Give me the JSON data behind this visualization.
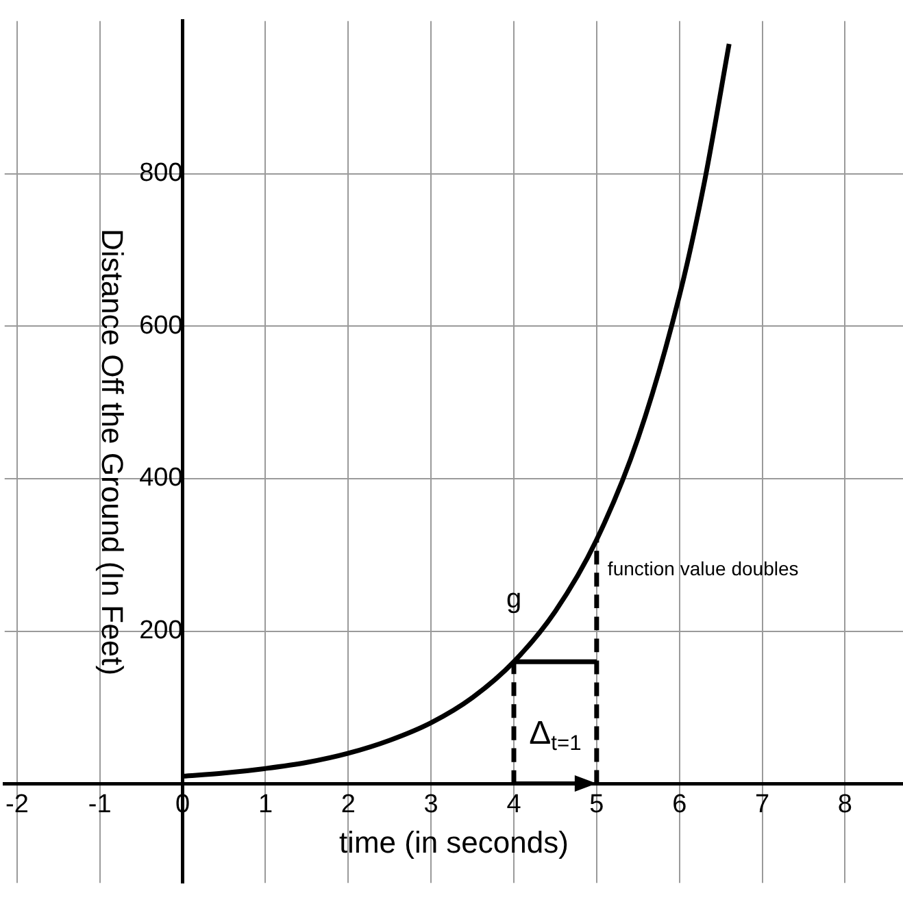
{
  "chart_data": {
    "type": "line",
    "xlabel": "time (in seconds)",
    "ylabel": "Distance Off the Ground (In Feet)",
    "xlim": [
      -2.15,
      8.7
    ],
    "ylim": [
      -130,
      1000
    ],
    "xticks": [
      -2,
      -1,
      0,
      1,
      2,
      3,
      4,
      5,
      6,
      7,
      8
    ],
    "yticks": [
      200,
      400,
      600,
      800
    ],
    "grid": true,
    "legend": false,
    "marker": "none",
    "series": [
      {
        "name": "g",
        "color": "#000000",
        "x": [
          0,
          0.5,
          1,
          1.5,
          2,
          2.5,
          3,
          3.5,
          4,
          4.5,
          5,
          5.5,
          6,
          6.3,
          6.6
        ],
        "values": [
          10,
          14,
          20,
          28,
          40,
          57,
          80,
          113,
          160,
          226,
          320,
          453,
          640,
          788,
          970
        ]
      },
      {
        "color": "#000000",
        "x": [
          4,
          4
        ],
        "values": [
          0,
          160
        ],
        "line_style": "dashed"
      },
      {
        "name": "function value doubles",
        "color": "#000000",
        "x": [
          5,
          5
        ],
        "values": [
          0,
          320
        ],
        "line_style": "dashed"
      },
      {
        "color": "#000000",
        "x": [
          4,
          5
        ],
        "values": [
          160,
          160
        ],
        "line_style": "solid"
      }
    ],
    "annotations": [
      "Δ$_{t=1}$"
    ]
  }
}
